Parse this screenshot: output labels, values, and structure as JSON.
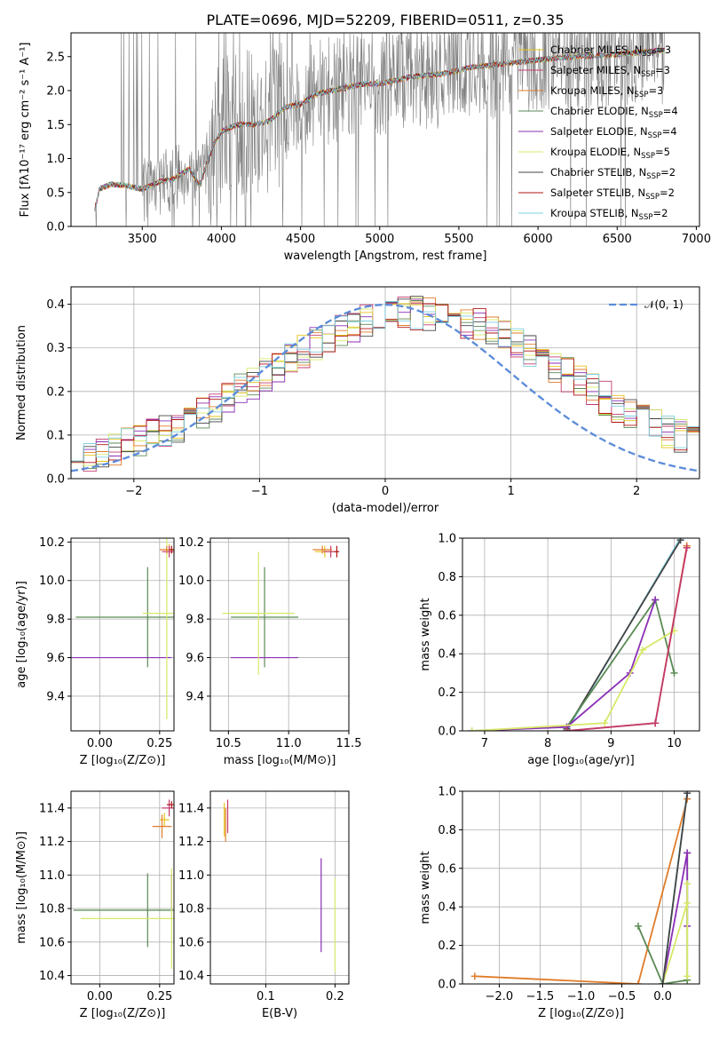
{
  "figure_title": "PLATE=0696, MJD=52209, FIBERID=0511, z=0.35",
  "colors": {
    "chabrier_miles": "#e6c41a",
    "salpeter_miles": "#c23b6e",
    "kroupa_miles": "#e07c2a",
    "chabrier_elodie": "#5b8a55",
    "salpeter_elodie": "#8b2fb6",
    "kroupa_elodie": "#d8e868",
    "chabrier_stelib": "#444444",
    "salpeter_stelib": "#b01515",
    "kroupa_stelib": "#7ecfe0",
    "data": "#808080",
    "normal": "#5b8bd9",
    "grid": "#b0b0b0"
  },
  "legend_spectrum": [
    {
      "label": "Chabrier MILES, N",
      "sub": "SSP",
      "suffix": "=3",
      "color_key": "chabrier_miles"
    },
    {
      "label": "Salpeter MILES, N",
      "sub": "SSP",
      "suffix": "=3",
      "color_key": "salpeter_miles"
    },
    {
      "label": "Kroupa MILES, N",
      "sub": "SSP",
      "suffix": "=3",
      "color_key": "kroupa_miles"
    },
    {
      "label": "Chabrier ELODIE, N",
      "sub": "SSP",
      "suffix": "=4",
      "color_key": "chabrier_elodie"
    },
    {
      "label": "Salpeter ELODIE, N",
      "sub": "SSP",
      "suffix": "=4",
      "color_key": "salpeter_elodie"
    },
    {
      "label": "Kroupa ELODIE, N",
      "sub": "SSP",
      "suffix": "=5",
      "color_key": "kroupa_elodie"
    },
    {
      "label": "Chabrier STELIB, N",
      "sub": "SSP",
      "suffix": "=2",
      "color_key": "chabrier_stelib"
    },
    {
      "label": "Salpeter STELIB, N",
      "sub": "SSP",
      "suffix": "=2",
      "color_key": "salpeter_stelib"
    },
    {
      "label": "Kroupa STELIB, N",
      "sub": "SSP",
      "suffix": "=2",
      "color_key": "kroupa_stelib"
    }
  ],
  "chart_data": [
    {
      "id": "spectrum",
      "type": "line",
      "xlabel": "wavelength [Angstrom, rest frame]",
      "ylabel": "Flux [fλ10⁻¹⁷ erg cm⁻² s⁻¹ A⁻¹]",
      "xlim": [
        3050,
        7020
      ],
      "ylim": [
        0,
        2.85
      ],
      "xticks": [
        3500,
        4000,
        4500,
        5000,
        5500,
        6000,
        6500,
        7000
      ],
      "yticks": [
        0.0,
        0.5,
        1.0,
        1.5,
        2.0,
        2.5
      ],
      "model_anchor_x": [
        3200,
        3230,
        3300,
        3400,
        3500,
        3600,
        3700,
        3800,
        3860,
        3950,
        4000,
        4100,
        4200,
        4300,
        4400,
        4500,
        4600,
        4700,
        4800,
        4900,
        5000,
        5200,
        5400,
        5600,
        5800,
        6000,
        6200,
        6400,
        6600,
        6800
      ],
      "model_anchor_y": [
        0.25,
        0.55,
        0.62,
        0.6,
        0.55,
        0.65,
        0.7,
        0.85,
        0.6,
        1.2,
        1.4,
        1.5,
        1.5,
        1.55,
        1.75,
        1.8,
        1.95,
        2.0,
        2.05,
        2.1,
        2.1,
        2.2,
        2.25,
        2.35,
        2.4,
        2.45,
        2.5,
        2.52,
        2.55,
        2.6
      ]
    },
    {
      "id": "residuals",
      "type": "step",
      "xlabel": "(data-model)/error",
      "ylabel": "Normed distribution",
      "xlim": [
        -2.5,
        2.5
      ],
      "ylim": [
        0,
        0.44
      ],
      "xticks": [
        -2,
        -1,
        0,
        1,
        2
      ],
      "yticks": [
        0.0,
        0.1,
        0.2,
        0.3,
        0.4
      ],
      "legend": "𝒩(0, 1)"
    },
    {
      "id": "age_vs_Z",
      "type": "errorbar",
      "xlabel": "Z [log₁₀(Z/Z⊙)]",
      "ylabel": "age  [log₁₀(age/yr)]",
      "xlim": [
        -0.12,
        0.31
      ],
      "ylim": [
        9.22,
        10.22
      ],
      "xticks": [
        0.0,
        0.25
      ],
      "yticks": [
        9.4,
        9.6,
        9.8,
        10.0,
        10.2
      ],
      "points": [
        {
          "x": 0.2,
          "y": 9.81,
          "xerr": 0.3,
          "yerr": 0.26,
          "color_key": "chabrier_elodie"
        },
        {
          "x": 0.08,
          "y": 9.6,
          "xerr": 0.22,
          "yerr": 0.0,
          "color_key": "salpeter_elodie"
        },
        {
          "x": 0.28,
          "y": 9.83,
          "xerr": 0.1,
          "yerr": 0.55,
          "color_key": "kroupa_elodie"
        },
        {
          "x": 0.29,
          "y": 10.16,
          "xerr": 0.02,
          "yerr": 0.03,
          "color_key": "chabrier_miles"
        },
        {
          "x": 0.29,
          "y": 10.15,
          "xerr": 0.03,
          "yerr": 0.03,
          "color_key": "salpeter_miles"
        },
        {
          "x": 0.28,
          "y": 10.16,
          "xerr": 0.03,
          "yerr": 0.02,
          "color_key": "kroupa_miles"
        },
        {
          "x": 0.3,
          "y": 10.16,
          "xerr": 0.01,
          "yerr": 0.02,
          "color_key": "salpeter_stelib"
        }
      ]
    },
    {
      "id": "age_vs_mass",
      "type": "errorbar",
      "xlabel": "mass [log₁₀(M/M⊙)]",
      "ylabel": "",
      "xlim": [
        10.35,
        11.5
      ],
      "ylim": [
        9.22,
        10.22
      ],
      "xticks": [
        10.5,
        11.0,
        11.5
      ],
      "yticks": [
        9.4,
        9.6,
        9.8,
        10.0,
        10.2
      ],
      "points": [
        {
          "x": 10.8,
          "y": 9.81,
          "xerr": 0.28,
          "yerr": 0.26,
          "color_key": "chabrier_elodie"
        },
        {
          "x": 10.8,
          "y": 9.6,
          "xerr": 0.28,
          "yerr": 0.0,
          "color_key": "salpeter_elodie"
        },
        {
          "x": 10.75,
          "y": 9.83,
          "xerr": 0.3,
          "yerr": 0.32,
          "color_key": "kroupa_elodie"
        },
        {
          "x": 11.3,
          "y": 10.15,
          "xerr": 0.08,
          "yerr": 0.03,
          "color_key": "chabrier_miles"
        },
        {
          "x": 11.35,
          "y": 10.15,
          "xerr": 0.06,
          "yerr": 0.03,
          "color_key": "salpeter_miles"
        },
        {
          "x": 11.28,
          "y": 10.16,
          "xerr": 0.08,
          "yerr": 0.02,
          "color_key": "kroupa_miles"
        },
        {
          "x": 11.4,
          "y": 10.15,
          "xerr": 0.02,
          "yerr": 0.03,
          "color_key": "salpeter_stelib"
        }
      ]
    },
    {
      "id": "weight_vs_age",
      "type": "line",
      "xlabel": "age  [log₁₀(age/yr)]",
      "ylabel": "mass weight",
      "xlim": [
        6.65,
        10.4
      ],
      "ylim": [
        0,
        1.0
      ],
      "xticks": [
        7,
        8,
        9,
        10
      ],
      "yticks": [
        0.0,
        0.2,
        0.4,
        0.6,
        0.8,
        1.0
      ],
      "series": [
        {
          "color_key": "kroupa_stelib",
          "x": [
            8.3,
            10.1
          ],
          "y": [
            0.0,
            1.0
          ]
        },
        {
          "color_key": "chabrier_stelib",
          "x": [
            8.3,
            10.1
          ],
          "y": [
            0.01,
            0.99
          ]
        },
        {
          "color_key": "chabrier_elodie",
          "x": [
            8.3,
            9.7,
            10.0
          ],
          "y": [
            0.02,
            0.68,
            0.3
          ]
        },
        {
          "color_key": "salpeter_elodie",
          "x": [
            6.8,
            8.3,
            9.3,
            9.7
          ],
          "y": [
            0.0,
            0.02,
            0.3,
            0.68
          ]
        },
        {
          "color_key": "kroupa_elodie",
          "x": [
            6.8,
            8.9,
            9.5,
            10.0
          ],
          "y": [
            0.0,
            0.04,
            0.42,
            0.52
          ]
        },
        {
          "color_key": "kroupa_miles",
          "x": [
            8.3,
            9.7,
            10.2
          ],
          "y": [
            0.0,
            0.04,
            0.96
          ]
        },
        {
          "color_key": "salpeter_miles",
          "x": [
            8.3,
            9.7,
            10.2
          ],
          "y": [
            0.0,
            0.04,
            0.95
          ]
        }
      ]
    },
    {
      "id": "mass_vs_Z",
      "type": "errorbar",
      "xlabel": "Z [log₁₀(Z/Z⊙)]",
      "ylabel": "mass [log₁₀(M/M⊙)]",
      "xlim": [
        -0.12,
        0.31
      ],
      "ylim": [
        10.35,
        11.5
      ],
      "xticks": [
        0.0,
        0.25
      ],
      "yticks": [
        10.4,
        10.6,
        10.8,
        11.0,
        11.2,
        11.4
      ],
      "points": [
        {
          "x": 0.2,
          "y": 10.79,
          "xerr": 0.31,
          "yerr": 0.22,
          "color_key": "chabrier_elodie"
        },
        {
          "x": 0.3,
          "y": 10.9,
          "xerr": 0.0,
          "yerr": 0.1,
          "color_key": "salpeter_elodie"
        },
        {
          "x": 0.3,
          "y": 10.74,
          "xerr": 0.38,
          "yerr": 0.3,
          "color_key": "kroupa_elodie"
        },
        {
          "x": 0.27,
          "y": 11.33,
          "xerr": 0.02,
          "yerr": 0.04,
          "color_key": "chabrier_miles"
        },
        {
          "x": 0.29,
          "y": 11.4,
          "xerr": 0.03,
          "yerr": 0.05,
          "color_key": "salpeter_miles"
        },
        {
          "x": 0.26,
          "y": 11.29,
          "xerr": 0.04,
          "yerr": 0.07,
          "color_key": "kroupa_miles"
        },
        {
          "x": 0.3,
          "y": 11.42,
          "xerr": 0.02,
          "yerr": 0.02,
          "color_key": "salpeter_stelib"
        }
      ]
    },
    {
      "id": "mass_vs_EBV",
      "type": "errorbar",
      "xlabel": "E(B-V)",
      "ylabel": "",
      "xlim": [
        0.02,
        0.22
      ],
      "ylim": [
        10.35,
        11.5
      ],
      "xticks": [
        0.1,
        0.2
      ],
      "yticks": [
        10.4,
        10.6,
        10.8,
        11.0,
        11.2,
        11.4
      ],
      "points": [
        {
          "x": 0.04,
          "y": 11.33,
          "xerr": 0.0,
          "yerr": 0.1,
          "color_key": "chabrier_miles"
        },
        {
          "x": 0.045,
          "y": 11.35,
          "xerr": 0.0,
          "yerr": 0.1,
          "color_key": "salpeter_miles"
        },
        {
          "x": 0.042,
          "y": 11.3,
          "xerr": 0.0,
          "yerr": 0.1,
          "color_key": "kroupa_miles"
        },
        {
          "x": 0.18,
          "y": 10.82,
          "xerr": 0.0,
          "yerr": 0.28,
          "color_key": "salpeter_elodie"
        },
        {
          "x": 0.2,
          "y": 10.7,
          "xerr": 0.0,
          "yerr": 0.28,
          "color_key": "kroupa_elodie"
        }
      ]
    },
    {
      "id": "weight_vs_Z",
      "type": "line",
      "xlabel": "Z [log₁₀(Z/Z⊙)]",
      "ylabel": "mass weight",
      "xlim": [
        -2.45,
        0.45
      ],
      "ylim": [
        0,
        1.0
      ],
      "xticks": [
        -2.0,
        -1.5,
        -1.0,
        -0.5,
        0.0
      ],
      "yticks": [
        0.0,
        0.2,
        0.4,
        0.6,
        0.8,
        1.0
      ],
      "series": [
        {
          "color_key": "kroupa_miles",
          "x": [
            -2.3,
            -0.3,
            0.3
          ],
          "y": [
            0.04,
            0.0,
            0.96
          ]
        },
        {
          "color_key": "chabrier_elodie",
          "x": [
            -0.3,
            0.0,
            0.3,
            0.3
          ],
          "y": [
            0.3,
            0.0,
            0.02,
            0.68
          ]
        },
        {
          "color_key": "salpeter_elodie",
          "x": [
            0.0,
            0.3,
            0.3
          ],
          "y": [
            0.0,
            0.68,
            0.3
          ]
        },
        {
          "color_key": "kroupa_elodie",
          "x": [
            0.0,
            0.3,
            0.3,
            0.3
          ],
          "y": [
            0.0,
            0.42,
            0.52,
            0.04
          ]
        },
        {
          "color_key": "kroupa_stelib",
          "x": [
            0.0,
            0.3
          ],
          "y": [
            0.0,
            1.0
          ]
        },
        {
          "color_key": "chabrier_stelib",
          "x": [
            0.0,
            0.3
          ],
          "y": [
            0.0,
            0.99
          ]
        }
      ]
    }
  ]
}
